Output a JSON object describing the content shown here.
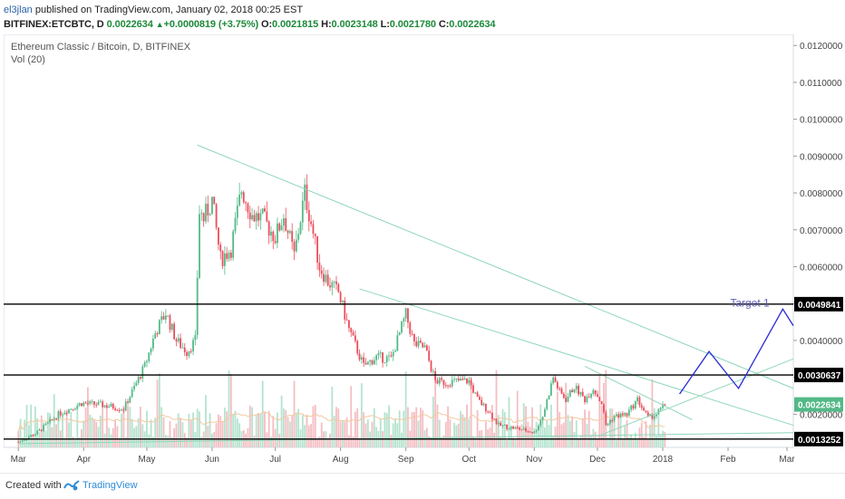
{
  "header": {
    "author": "el3jlan",
    "published_text": "published on TradingView.com, January 02, 2018 00:25 EST",
    "symbol": "BITFINEX:ETCBTC, D",
    "last": "0.0022634",
    "change": "+0.0000819 (+3.75%)",
    "o_label": "O:",
    "o_value": "0.0021815",
    "h_label": "H:",
    "h_value": "0.0023148",
    "l_label": "L:",
    "l_value": "0.0021780",
    "c_label": "C:",
    "c_value": "0.0022634"
  },
  "footer": {
    "created_with": "Created with",
    "brand": "TradingView"
  },
  "colors": {
    "up": "#53b987",
    "down": "#eb4d5c",
    "trend": "#8fd6b8",
    "projection": "#2b2bd6",
    "target_text": "#5f5fb8",
    "level": "#000000",
    "vol_up": "#b5e3cf",
    "vol_down": "#f4bec3",
    "ma": "#f3c9a0"
  },
  "chart_data": {
    "type": "line",
    "title": "Ethereum Classic / Bitcoin, D, BITFINEX",
    "indicator": "Vol (20)",
    "xlabel": "",
    "ylabel": "",
    "ylim": [
      0.0011,
      0.0123
    ],
    "x_ticks": [
      "Mar",
      "Apr",
      "May",
      "Jun",
      "Jul",
      "Aug",
      "Sep",
      "Oct",
      "Nov",
      "Dec",
      "2018",
      "Feb",
      "Mar"
    ],
    "y_ticks": [
      "0.0020000",
      "0.0030000",
      "0.0040000",
      "0.0050000",
      "0.0060000",
      "0.0070000",
      "0.0080000",
      "0.0090000",
      "0.0100000",
      "0.0110000",
      "0.0120000"
    ],
    "marked_levels": [
      "0.0049841",
      "0.0030637",
      "0.0013252"
    ],
    "last_price": "0.0022634",
    "annotation": "Target 1",
    "series": [
      {
        "x": [
          "2017-03-01",
          "2017-03-10",
          "2017-03-20",
          "2017-03-31",
          "2017-04-10",
          "2017-04-20",
          "2017-04-30",
          "2017-05-05",
          "2017-05-10",
          "2017-05-15",
          "2017-05-20",
          "2017-05-24",
          "2017-05-26",
          "2017-05-28",
          "2017-06-01",
          "2017-06-05",
          "2017-06-10",
          "2017-06-15",
          "2017-06-20",
          "2017-06-25",
          "2017-07-01",
          "2017-07-05",
          "2017-07-10",
          "2017-07-15",
          "2017-07-18",
          "2017-07-22",
          "2017-07-26",
          "2017-07-31",
          "2017-08-05",
          "2017-08-12",
          "2017-08-18",
          "2017-08-25",
          "2017-09-01",
          "2017-09-05",
          "2017-09-10",
          "2017-09-15",
          "2017-09-20",
          "2017-09-25",
          "2017-10-01",
          "2017-10-05",
          "2017-10-10",
          "2017-10-15",
          "2017-10-20",
          "2017-10-25",
          "2017-11-01",
          "2017-11-05",
          "2017-11-10",
          "2017-11-13",
          "2017-11-16",
          "2017-11-20",
          "2017-11-25",
          "2017-11-29",
          "2017-12-03",
          "2017-12-05",
          "2017-12-09",
          "2017-12-15",
          "2017-12-20",
          "2017-12-25",
          "2017-12-29",
          "2018-01-02"
        ],
        "close": [
          0.00125,
          0.0015,
          0.002,
          0.0023,
          0.00225,
          0.00215,
          0.0033,
          0.0042,
          0.00475,
          0.004,
          0.0037,
          0.004,
          0.0075,
          0.0073,
          0.0078,
          0.0062,
          0.0065,
          0.0081,
          0.0074,
          0.0073,
          0.0068,
          0.0074,
          0.0063,
          0.008,
          0.0072,
          0.006,
          0.0056,
          0.0053,
          0.0043,
          0.0033,
          0.00355,
          0.0035,
          0.0047,
          0.0039,
          0.0038,
          0.0029,
          0.00285,
          0.0029,
          0.0029,
          0.0024,
          0.0021,
          0.0017,
          0.00165,
          0.0016,
          0.0015,
          0.00195,
          0.003,
          0.0026,
          0.0024,
          0.00275,
          0.0024,
          0.0027,
          0.0023,
          0.0017,
          0.00195,
          0.002,
          0.0024,
          0.0019,
          0.002,
          0.00226
        ]
      }
    ]
  }
}
